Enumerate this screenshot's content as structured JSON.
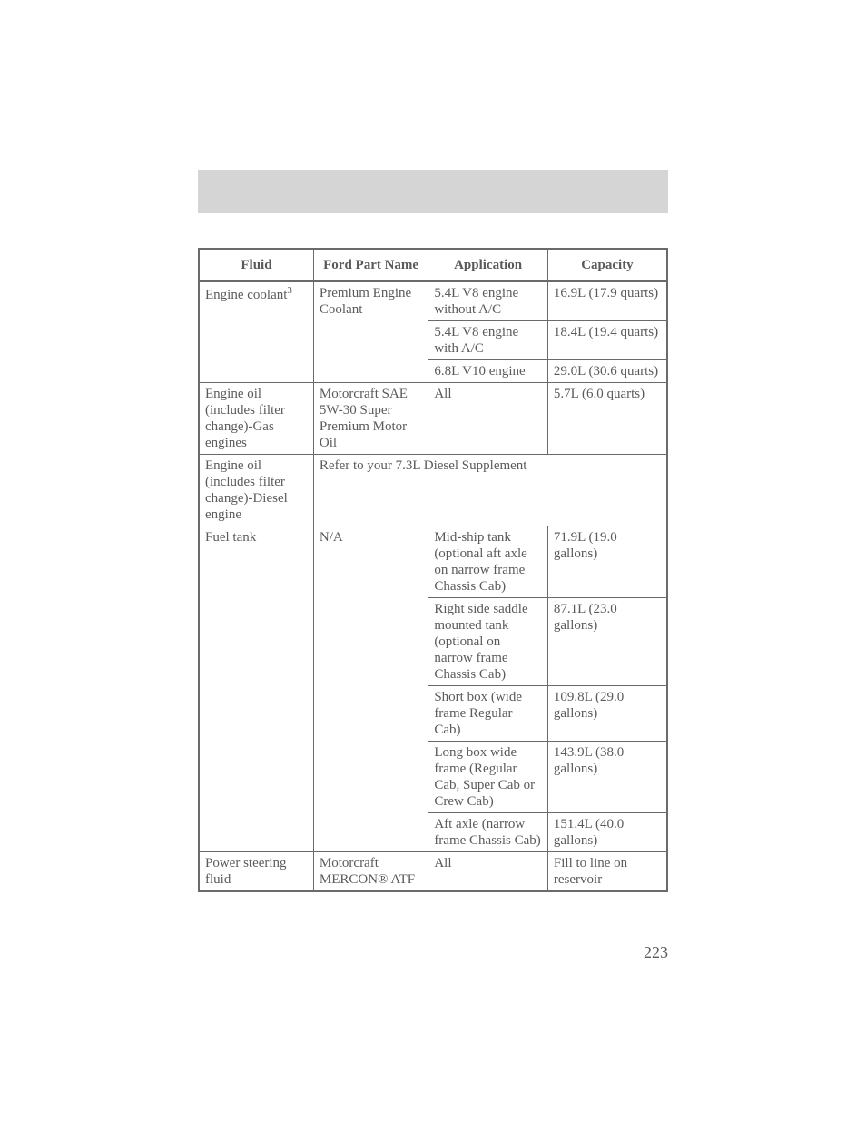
{
  "colors": {
    "headerBand": "#d5d5d5",
    "border": "#6a6a6a",
    "text": "#5a5a5a",
    "background": "#ffffff"
  },
  "columns": [
    "Fluid",
    "Ford Part Name",
    "Application",
    "Capacity"
  ],
  "rows": [
    {
      "fluid": "Engine coolant",
      "fluidSup": "3",
      "fluidRowspan": 3,
      "partName": "Premium Engine Coolant",
      "partNameRowspan": 3,
      "application": "5.4L V8 engine without A/C",
      "capacity": "16.9L (17.9 quarts)"
    },
    {
      "application": "5.4L V8 engine with A/C",
      "capacity": "18.4L (19.4 quarts)"
    },
    {
      "application": "6.8L V10 engine",
      "capacity": "29.0L (30.6 quarts)"
    },
    {
      "fluid": "Engine oil (includes filter change)-Gas engines",
      "partName": "Motorcraft SAE 5W-30 Super Premium Motor Oil",
      "application": "All",
      "capacity": "5.7L (6.0 quarts)"
    },
    {
      "fluid": "Engine oil (includes filter change)-Diesel engine",
      "merged": "Refer to your 7.3L Diesel Supplement",
      "mergedColspan": 3
    },
    {
      "fluid": "Fuel tank",
      "fluidRowspan": 5,
      "partName": "N/A",
      "partNameRowspan": 5,
      "application": "Mid-ship tank (optional aft axle on narrow frame Chassis Cab)",
      "capacity": "71.9L (19.0 gallons)"
    },
    {
      "application": "Right side saddle mounted tank (optional on narrow frame Chassis Cab)",
      "capacity": "87.1L (23.0 gallons)"
    },
    {
      "application": "Short box (wide frame Regular Cab)",
      "capacity": "109.8L (29.0 gallons)"
    },
    {
      "application": "Long box wide frame (Regular Cab, Super Cab or Crew Cab)",
      "capacity": "143.9L (38.0 gallons)"
    },
    {
      "application": "Aft axle (narrow frame Chassis Cab)",
      "capacity": "151.4L (40.0 gallons)"
    },
    {
      "fluid": "Power steering fluid",
      "partName": "Motorcraft MERCON® ATF",
      "application": "All",
      "capacity": "Fill to line on reservoir"
    }
  ],
  "pageNumber": "223"
}
